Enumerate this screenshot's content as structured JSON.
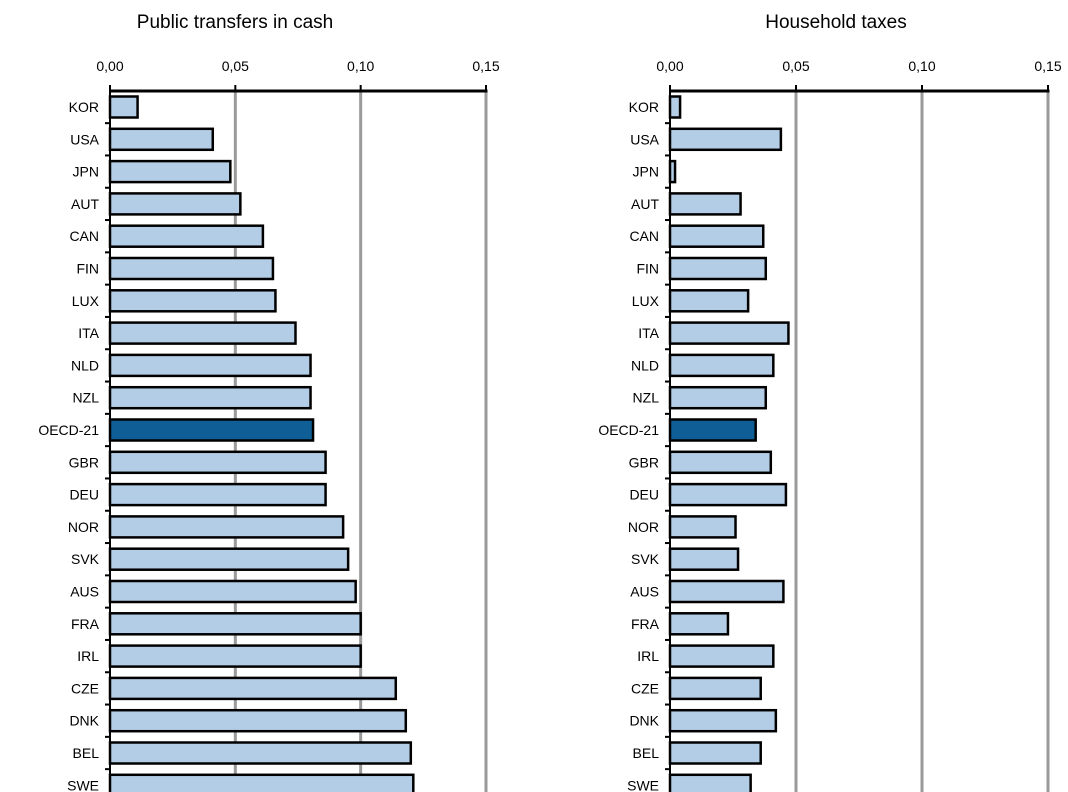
{
  "colors": {
    "bar": "#b4cde6",
    "bar_highlight": "#0f5f96",
    "bar_stroke": "#000000",
    "grid": "#9a9a9a",
    "axis": "#000000"
  },
  "chart_data": [
    {
      "type": "bar",
      "orientation": "horizontal",
      "title": "Public transfers in cash",
      "xlim": [
        0,
        0.15
      ],
      "ticks": [
        0,
        0.05,
        0.1,
        0.15
      ],
      "tick_labels": [
        "0,00",
        "0,05",
        "0,10",
        "0,15"
      ],
      "x_axis_position": "top",
      "grid": true,
      "highlight": "OECD-21",
      "categories": [
        "KOR",
        "USA",
        "JPN",
        "AUT",
        "CAN",
        "FIN",
        "LUX",
        "ITA",
        "NLD",
        "NZL",
        "OECD-21",
        "GBR",
        "DEU",
        "NOR",
        "SVK",
        "AUS",
        "FRA",
        "IRL",
        "CZE",
        "DNK",
        "BEL",
        "SWE"
      ],
      "values": [
        0.011,
        0.041,
        0.048,
        0.052,
        0.061,
        0.065,
        0.066,
        0.074,
        0.08,
        0.08,
        0.081,
        0.086,
        0.086,
        0.093,
        0.095,
        0.098,
        0.1,
        0.1,
        0.114,
        0.118,
        0.12,
        0.121
      ]
    },
    {
      "type": "bar",
      "orientation": "horizontal",
      "title": "Household taxes",
      "xlim": [
        0,
        0.15
      ],
      "ticks": [
        0,
        0.05,
        0.1,
        0.15
      ],
      "tick_labels": [
        "0,00",
        "0,05",
        "0,10",
        "0,15"
      ],
      "x_axis_position": "top",
      "grid": true,
      "highlight": "OECD-21",
      "categories": [
        "KOR",
        "USA",
        "JPN",
        "AUT",
        "CAN",
        "FIN",
        "LUX",
        "ITA",
        "NLD",
        "NZL",
        "OECD-21",
        "GBR",
        "DEU",
        "NOR",
        "SVK",
        "AUS",
        "FRA",
        "IRL",
        "CZE",
        "DNK",
        "BEL",
        "SWE"
      ],
      "values": [
        0.004,
        0.044,
        0.002,
        0.028,
        0.037,
        0.038,
        0.031,
        0.047,
        0.041,
        0.038,
        0.034,
        0.04,
        0.046,
        0.026,
        0.027,
        0.045,
        0.023,
        0.041,
        0.036,
        0.042,
        0.036,
        0.032
      ]
    }
  ]
}
